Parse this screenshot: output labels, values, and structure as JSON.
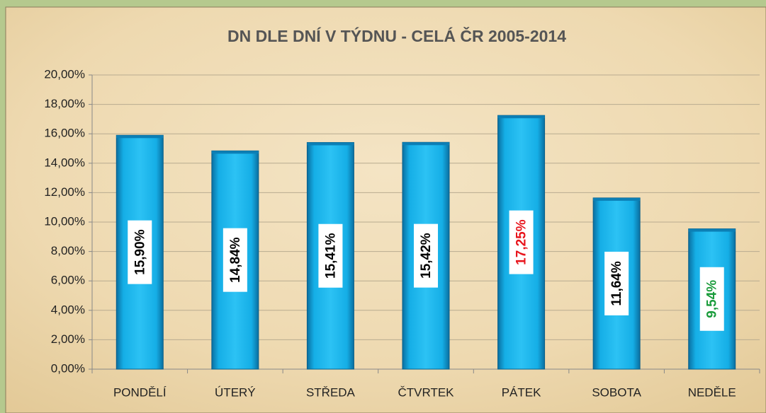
{
  "chart_data": {
    "type": "bar",
    "title": "DN DLE DNÍ V TÝDNU - CELÁ ČR 2005-2014",
    "categories": [
      "PONDĚLÍ",
      "ÚTERÝ",
      "STŘEDA",
      "ČTVRTEK",
      "PÁTEK",
      "SOBOTA",
      "NEDĚLE"
    ],
    "values": [
      15.9,
      14.84,
      15.41,
      15.42,
      17.25,
      11.64,
      9.54
    ],
    "value_labels": [
      "15,90%",
      "14,84%",
      "15,41%",
      "15,42%",
      "17,25%",
      "11,64%",
      "9,54%"
    ],
    "label_colors": [
      "#000000",
      "#000000",
      "#000000",
      "#000000",
      "#e8141c",
      "#000000",
      "#1a9c3c"
    ],
    "color": "#15aee6",
    "ylim": [
      0,
      20
    ],
    "yticks": [
      {
        "value": 0,
        "label": "0,00%"
      },
      {
        "value": 2,
        "label": "2,00%"
      },
      {
        "value": 4,
        "label": "4,00%"
      },
      {
        "value": 6,
        "label": "6,00%"
      },
      {
        "value": 8,
        "label": "8,00%"
      },
      {
        "value": 10,
        "label": "10,00%"
      },
      {
        "value": 12,
        "label": "12,00%"
      },
      {
        "value": 14,
        "label": "14,00%"
      },
      {
        "value": 16,
        "label": "16,00%"
      },
      {
        "value": 18,
        "label": "18,00%"
      },
      {
        "value": 20,
        "label": "20,00%"
      }
    ],
    "grid": true
  }
}
